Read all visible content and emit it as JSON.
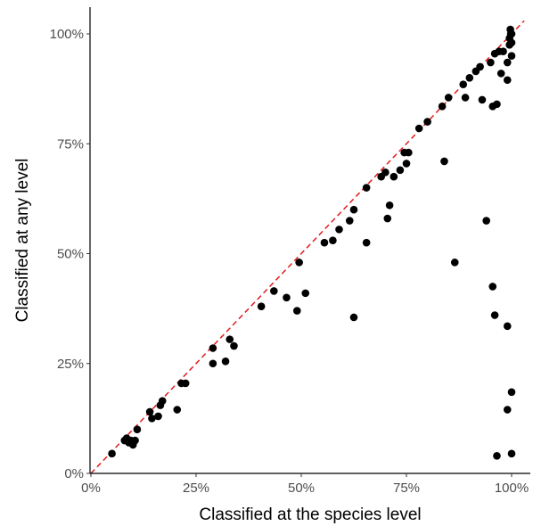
{
  "chart_data": {
    "type": "scatter",
    "xlabel": "Classified at the species level",
    "ylabel": "Classified at any level",
    "xlim": [
      0,
      1.05
    ],
    "ylim": [
      0,
      1.03
    ],
    "x_ticks": [
      0,
      0.25,
      0.5,
      0.75,
      1.0
    ],
    "x_tick_labels": [
      "0%",
      "25%",
      "50%",
      "75%",
      "100%"
    ],
    "y_ticks": [
      0,
      0.25,
      0.5,
      0.75,
      1.0
    ],
    "y_tick_labels": [
      "0%",
      "25%",
      "50%",
      "75%",
      "100%"
    ],
    "grid": false,
    "reference_line": {
      "type": "identity",
      "style": "dashed",
      "color": "#e31a1c"
    },
    "point_color": "#000000",
    "points": [
      [
        0.05,
        0.045
      ],
      [
        0.08,
        0.075
      ],
      [
        0.085,
        0.08
      ],
      [
        0.09,
        0.07
      ],
      [
        0.095,
        0.075
      ],
      [
        0.1,
        0.065
      ],
      [
        0.105,
        0.075
      ],
      [
        0.11,
        0.1
      ],
      [
        0.14,
        0.14
      ],
      [
        0.145,
        0.125
      ],
      [
        0.16,
        0.13
      ],
      [
        0.165,
        0.155
      ],
      [
        0.17,
        0.165
      ],
      [
        0.205,
        0.145
      ],
      [
        0.215,
        0.205
      ],
      [
        0.225,
        0.205
      ],
      [
        0.29,
        0.285
      ],
      [
        0.29,
        0.25
      ],
      [
        0.32,
        0.255
      ],
      [
        0.33,
        0.305
      ],
      [
        0.34,
        0.29
      ],
      [
        0.405,
        0.38
      ],
      [
        0.435,
        0.415
      ],
      [
        0.465,
        0.4
      ],
      [
        0.49,
        0.37
      ],
      [
        0.495,
        0.48
      ],
      [
        0.51,
        0.41
      ],
      [
        0.555,
        0.525
      ],
      [
        0.575,
        0.53
      ],
      [
        0.59,
        0.555
      ],
      [
        0.615,
        0.575
      ],
      [
        0.625,
        0.6
      ],
      [
        0.625,
        0.355
      ],
      [
        0.655,
        0.525
      ],
      [
        0.655,
        0.65
      ],
      [
        0.69,
        0.675
      ],
      [
        0.7,
        0.685
      ],
      [
        0.705,
        0.58
      ],
      [
        0.71,
        0.61
      ],
      [
        0.72,
        0.675
      ],
      [
        0.735,
        0.69
      ],
      [
        0.745,
        0.73
      ],
      [
        0.75,
        0.705
      ],
      [
        0.755,
        0.73
      ],
      [
        0.78,
        0.785
      ],
      [
        0.8,
        0.8
      ],
      [
        0.835,
        0.835
      ],
      [
        0.84,
        0.71
      ],
      [
        0.85,
        0.855
      ],
      [
        0.865,
        0.48
      ],
      [
        0.885,
        0.885
      ],
      [
        0.89,
        0.855
      ],
      [
        0.9,
        0.9
      ],
      [
        0.915,
        0.915
      ],
      [
        0.925,
        0.925
      ],
      [
        0.93,
        0.85
      ],
      [
        0.94,
        0.575
      ],
      [
        0.95,
        0.935
      ],
      [
        0.955,
        0.835
      ],
      [
        0.955,
        0.425
      ],
      [
        0.96,
        0.36
      ],
      [
        0.96,
        0.955
      ],
      [
        0.965,
        0.84
      ],
      [
        0.965,
        0.04
      ],
      [
        0.97,
        0.96
      ],
      [
        0.975,
        0.91
      ],
      [
        0.98,
        0.96
      ],
      [
        0.99,
        0.935
      ],
      [
        0.99,
        0.895
      ],
      [
        0.99,
        0.335
      ],
      [
        0.99,
        0.145
      ],
      [
        0.995,
        0.975
      ],
      [
        0.995,
        0.99
      ],
      [
        0.997,
        1.01
      ],
      [
        0.998,
        1.0
      ],
      [
        1.0,
        1.0
      ],
      [
        1.0,
        0.98
      ],
      [
        1.0,
        0.95
      ],
      [
        1.0,
        0.185
      ],
      [
        1.0,
        0.045
      ]
    ]
  }
}
